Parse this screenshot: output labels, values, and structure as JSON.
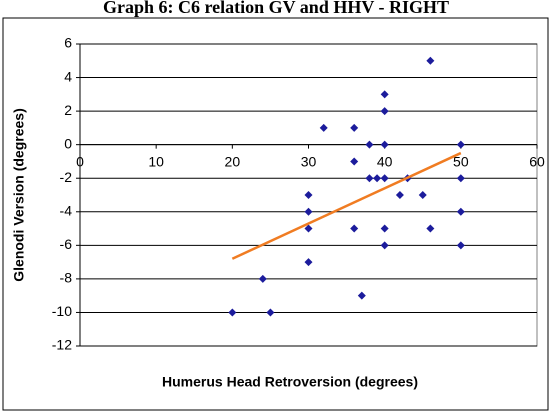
{
  "chart_data": {
    "type": "scatter",
    "title": "Graph 6: C6 relation GV and HHV - RIGHT",
    "x_label": "Humerus Head Retroversion (degrees)",
    "y_label": "Glenodi Version (degrees)",
    "xlim": [
      0,
      60
    ],
    "xticks": [
      0,
      10,
      20,
      30,
      40,
      50,
      60
    ],
    "ylim": [
      -12,
      6
    ],
    "yticks": [
      -12,
      -10,
      -8,
      -6,
      -4,
      -2,
      0,
      2,
      4,
      6
    ],
    "grid": true,
    "series": [
      {
        "color": "#1c1c9c",
        "x": [
          20,
          24,
          25,
          30,
          30,
          30,
          30,
          32,
          36,
          36,
          36,
          37,
          38,
          38,
          39,
          40,
          40,
          40,
          40,
          40,
          40,
          42,
          43,
          45,
          46,
          46,
          50,
          50,
          50,
          50
        ],
        "values": [
          -10,
          -8,
          -10,
          -3,
          -4,
          -5,
          -7,
          1,
          1,
          -1,
          -5,
          -9,
          0,
          -2,
          -2,
          3,
          2,
          0,
          -2,
          -5,
          -6,
          -3,
          -2,
          -3,
          5,
          -5,
          0,
          -2,
          -4,
          -6
        ]
      }
    ],
    "trendline": {
      "color": "#f07c22",
      "x": [
        20,
        50
      ],
      "values": [
        -6.8,
        -0.5
      ]
    }
  }
}
